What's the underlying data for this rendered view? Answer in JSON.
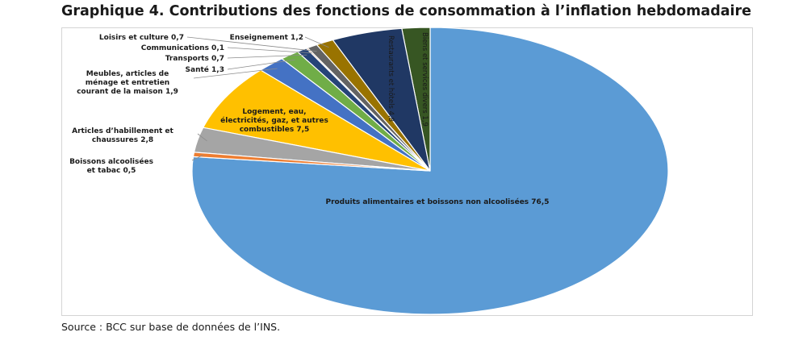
{
  "title": "Graphique 4. Contributions des fonctions de consommation à l’inflation hebdomadaire",
  "source": "Source : BCC sur base de données de l’INS.",
  "chart_data": {
    "type": "pie",
    "title": "Graphique 4. Contributions des fonctions de consommation à l’inflation hebdomadaire",
    "slices": [
      {
        "label": "Produits alimentaires et boissons non alcoolisées",
        "value": 76.5,
        "color": "#5b9bd5",
        "text": "Produits alimentaires et boissons non alcoolisées 76,5"
      },
      {
        "label": "Boissons alcoolisées et tabac",
        "value": 0.5,
        "color": "#ed7d31",
        "lines": [
          "Boissons alcoolisées",
          "et tabac 0,5"
        ]
      },
      {
        "label": "Articles d’habillement et chaussures",
        "value": 2.8,
        "color": "#a5a5a5",
        "lines": [
          "Articles d’habillement et",
          "chaussures 2,8"
        ]
      },
      {
        "label": "Logement, eau, électricités, gaz, et autres combustibles",
        "value": 7.5,
        "color": "#ffc000",
        "lines": [
          "Logement, eau,",
          "électricités, gaz, et autres",
          "combustibles 7,5"
        ]
      },
      {
        "label": "Meubles, articles de ménage et entretien courant de la maison",
        "value": 1.9,
        "color": "#4472c4",
        "lines": [
          "Meubles, articles de",
          "ménage et entretien",
          "courant de la maison 1,9"
        ]
      },
      {
        "label": "Santé",
        "value": 1.3,
        "color": "#70ad47",
        "text": "Santé  1,3"
      },
      {
        "label": "Transports",
        "value": 0.7,
        "color": "#264478",
        "text": "Transports 0,7"
      },
      {
        "label": "Communications",
        "value": 0.1,
        "color": "#9e480e",
        "text": "Communications 0,1"
      },
      {
        "label": "Loisirs et culture",
        "value": 0.7,
        "color": "#636363",
        "text": "Loisirs et culture 0,7"
      },
      {
        "label": "Enseignement",
        "value": 1.2,
        "color": "#997300",
        "text": "Enseignement  1,2"
      },
      {
        "label": "Restaurants et hôtels",
        "value": 4.8,
        "color": "#203864",
        "text": "Restaurants et hôtels 4,8"
      },
      {
        "label": "Biens et services divers",
        "value": 1.9,
        "color": "#375623",
        "text": "Biens et services divers 1,9"
      }
    ]
  }
}
